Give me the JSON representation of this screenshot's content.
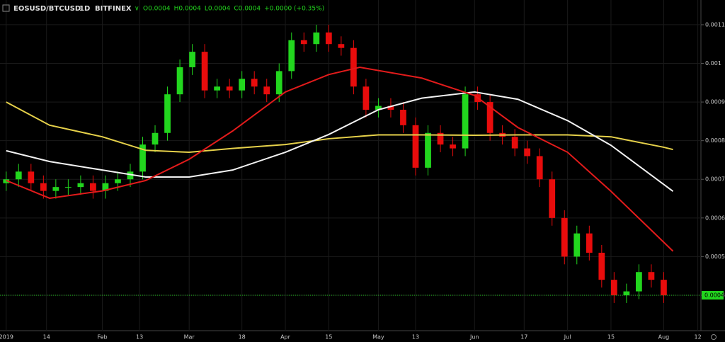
{
  "chart_data": {
    "type": "candlestick",
    "header": {
      "symbol": "EOSUSD/BTCUSD",
      "interval": "1D",
      "exchange": "BITFINEX",
      "ohlc": [
        "O0.0004",
        "H0.0004",
        "L0.0004",
        "C0.0004",
        "+0.0000 (+0.35%)"
      ]
    },
    "up_color": "#22d61e",
    "down_color": "#e80c0c",
    "grid": true,
    "xlim": [
      "2018-12-30",
      "2019-08-13"
    ],
    "ylim": [
      0.000312,
      0.001164
    ],
    "yticks": [
      0.0004,
      0.0005,
      0.0006,
      0.0007,
      0.0008,
      0.0009,
      0.001,
      0.0011
    ],
    "xticks": [
      {
        "value": "2019-01-01",
        "label": "2019"
      },
      {
        "value": "2019-01-14",
        "label": "14"
      },
      {
        "value": "2019-02-01",
        "label": "Feb"
      },
      {
        "value": "2019-02-13",
        "label": "13"
      },
      {
        "value": "2019-03-01",
        "label": "Mar"
      },
      {
        "value": "2019-03-18",
        "label": "18"
      },
      {
        "value": "2019-04-01",
        "label": "Apr"
      },
      {
        "value": "2019-04-15",
        "label": "15"
      },
      {
        "value": "2019-05-01",
        "label": "May"
      },
      {
        "value": "2019-05-13",
        "label": "13"
      },
      {
        "value": "2019-06-01",
        "label": "Jun"
      },
      {
        "value": "2019-06-17",
        "label": "17"
      },
      {
        "value": "2019-07-01",
        "label": "Jul"
      },
      {
        "value": "2019-07-15",
        "label": "15"
      },
      {
        "value": "2019-08-01",
        "label": "Aug"
      },
      {
        "value": "2019-08-12",
        "label": "12"
      }
    ],
    "last_price": 0.0004,
    "last_price_color": "#22d61e",
    "x": [
      "2019-01-01",
      "2019-01-05",
      "2019-01-09",
      "2019-01-13",
      "2019-01-17",
      "2019-01-21",
      "2019-01-25",
      "2019-01-29",
      "2019-02-02",
      "2019-02-06",
      "2019-02-10",
      "2019-02-14",
      "2019-02-18",
      "2019-02-22",
      "2019-02-26",
      "2019-03-02",
      "2019-03-06",
      "2019-03-10",
      "2019-03-14",
      "2019-03-18",
      "2019-03-22",
      "2019-03-26",
      "2019-03-30",
      "2019-04-03",
      "2019-04-07",
      "2019-04-11",
      "2019-04-15",
      "2019-04-19",
      "2019-04-23",
      "2019-04-27",
      "2019-05-01",
      "2019-05-05",
      "2019-05-09",
      "2019-05-13",
      "2019-05-17",
      "2019-05-21",
      "2019-05-25",
      "2019-05-29",
      "2019-06-02",
      "2019-06-06",
      "2019-06-10",
      "2019-06-14",
      "2019-06-18",
      "2019-06-22",
      "2019-06-26",
      "2019-06-30",
      "2019-07-04",
      "2019-07-08",
      "2019-07-12",
      "2019-07-16",
      "2019-07-20",
      "2019-07-24",
      "2019-07-28",
      "2019-08-01"
    ],
    "open": [
      0.00069,
      0.0007,
      0.00072,
      0.00069,
      0.00067,
      0.00068,
      0.00068,
      0.00069,
      0.00067,
      0.00069,
      0.0007,
      0.00072,
      0.00079,
      0.00082,
      0.00092,
      0.00099,
      0.00103,
      0.00093,
      0.00094,
      0.00093,
      0.00096,
      0.00094,
      0.00092,
      0.00098,
      0.00106,
      0.00105,
      0.00108,
      0.00105,
      0.00104,
      0.00094,
      0.00088,
      0.00089,
      0.00088,
      0.00084,
      0.00073,
      0.00082,
      0.00079,
      0.00078,
      0.00092,
      0.0009,
      0.00082,
      0.00081,
      0.00078,
      0.00076,
      0.0007,
      0.0006,
      0.0005,
      0.00056,
      0.00051,
      0.00044,
      0.0004,
      0.00041,
      0.00046,
      0.00044
    ],
    "high": [
      0.00072,
      0.00074,
      0.00074,
      0.00071,
      0.0007,
      0.0007,
      0.00071,
      0.00071,
      0.00071,
      0.00072,
      0.00074,
      0.00081,
      0.00084,
      0.00094,
      0.00101,
      0.00105,
      0.00105,
      0.00096,
      0.00096,
      0.00098,
      0.00098,
      0.00096,
      0.001,
      0.00108,
      0.00108,
      0.0011,
      0.0011,
      0.00107,
      0.00106,
      0.00096,
      0.00091,
      0.00091,
      0.0009,
      0.00086,
      0.00084,
      0.00084,
      0.00081,
      0.00094,
      0.00094,
      0.00092,
      0.00084,
      0.00083,
      0.0008,
      0.00078,
      0.00072,
      0.00062,
      0.00058,
      0.00058,
      0.00053,
      0.00046,
      0.00043,
      0.00048,
      0.00048,
      0.00046
    ],
    "low": [
      0.00067,
      0.00068,
      0.00067,
      0.00065,
      0.00065,
      0.00066,
      0.00066,
      0.00065,
      0.00065,
      0.00067,
      0.00068,
      0.0007,
      0.00077,
      0.0008,
      0.0009,
      0.00097,
      0.00091,
      0.00091,
      0.00091,
      0.00091,
      0.00092,
      0.0009,
      0.0009,
      0.00096,
      0.00103,
      0.00103,
      0.00103,
      0.00102,
      0.00092,
      0.00086,
      0.00086,
      0.00086,
      0.00082,
      0.00071,
      0.00071,
      0.00077,
      0.00076,
      0.00076,
      0.00088,
      0.0008,
      0.00079,
      0.00076,
      0.00074,
      0.00068,
      0.00058,
      0.00048,
      0.00048,
      0.00049,
      0.00042,
      0.00038,
      0.00038,
      0.00039,
      0.00042,
      0.00038
    ],
    "close": [
      0.0007,
      0.00072,
      0.00069,
      0.00067,
      0.00068,
      0.00068,
      0.00069,
      0.00067,
      0.00069,
      0.0007,
      0.00072,
      0.00079,
      0.00082,
      0.00092,
      0.00099,
      0.00103,
      0.00093,
      0.00094,
      0.00093,
      0.00096,
      0.00094,
      0.00092,
      0.00098,
      0.00106,
      0.00105,
      0.00108,
      0.00105,
      0.00104,
      0.00094,
      0.00088,
      0.00089,
      0.00088,
      0.00084,
      0.00073,
      0.00082,
      0.00079,
      0.00078,
      0.00092,
      0.0009,
      0.00082,
      0.00081,
      0.00078,
      0.00076,
      0.0007,
      0.0006,
      0.0005,
      0.00056,
      0.00051,
      0.00044,
      0.0004,
      0.00041,
      0.00046,
      0.00044,
      0.0004
    ],
    "lines": [
      {
        "color": "#e6d14a",
        "x": [
          "2019-01-01",
          "2019-01-15",
          "2019-02-01",
          "2019-02-15",
          "2019-03-01",
          "2019-03-15",
          "2019-04-01",
          "2019-04-15",
          "2019-05-01",
          "2019-05-15",
          "2019-06-01",
          "2019-06-15",
          "2019-07-01",
          "2019-07-15",
          "2019-08-01",
          "2019-08-04"
        ],
        "values": [
          0.0009,
          0.00084,
          0.00081,
          0.000775,
          0.00077,
          0.00078,
          0.00079,
          0.000805,
          0.000815,
          0.000815,
          0.000814,
          0.000815,
          0.000815,
          0.00081,
          0.000783,
          0.000777
        ]
      },
      {
        "color": "#f2f2f2",
        "x": [
          "2019-01-01",
          "2019-01-15",
          "2019-02-01",
          "2019-02-15",
          "2019-03-01",
          "2019-03-15",
          "2019-04-01",
          "2019-04-15",
          "2019-05-01",
          "2019-05-15",
          "2019-06-01",
          "2019-06-15",
          "2019-07-01",
          "2019-07-15",
          "2019-08-04"
        ],
        "values": [
          0.000774,
          0.000746,
          0.000724,
          0.000706,
          0.000706,
          0.000724,
          0.00077,
          0.000816,
          0.00088,
          0.00091,
          0.000926,
          0.000907,
          0.000852,
          0.000788,
          0.000669
        ]
      },
      {
        "color": "#e21b1b",
        "x": [
          "2019-01-01",
          "2019-01-15",
          "2019-02-01",
          "2019-02-15",
          "2019-03-01",
          "2019-03-15",
          "2019-04-01",
          "2019-04-15",
          "2019-04-25",
          "2019-05-15",
          "2019-06-01",
          "2019-06-15",
          "2019-07-01",
          "2019-07-15",
          "2019-08-04"
        ],
        "values": [
          0.000697,
          0.000651,
          0.00067,
          0.000697,
          0.000752,
          0.000825,
          0.000926,
          0.000971,
          0.00099,
          0.000962,
          0.000917,
          0.000834,
          0.00077,
          0.000669,
          0.000514
        ]
      }
    ]
  }
}
